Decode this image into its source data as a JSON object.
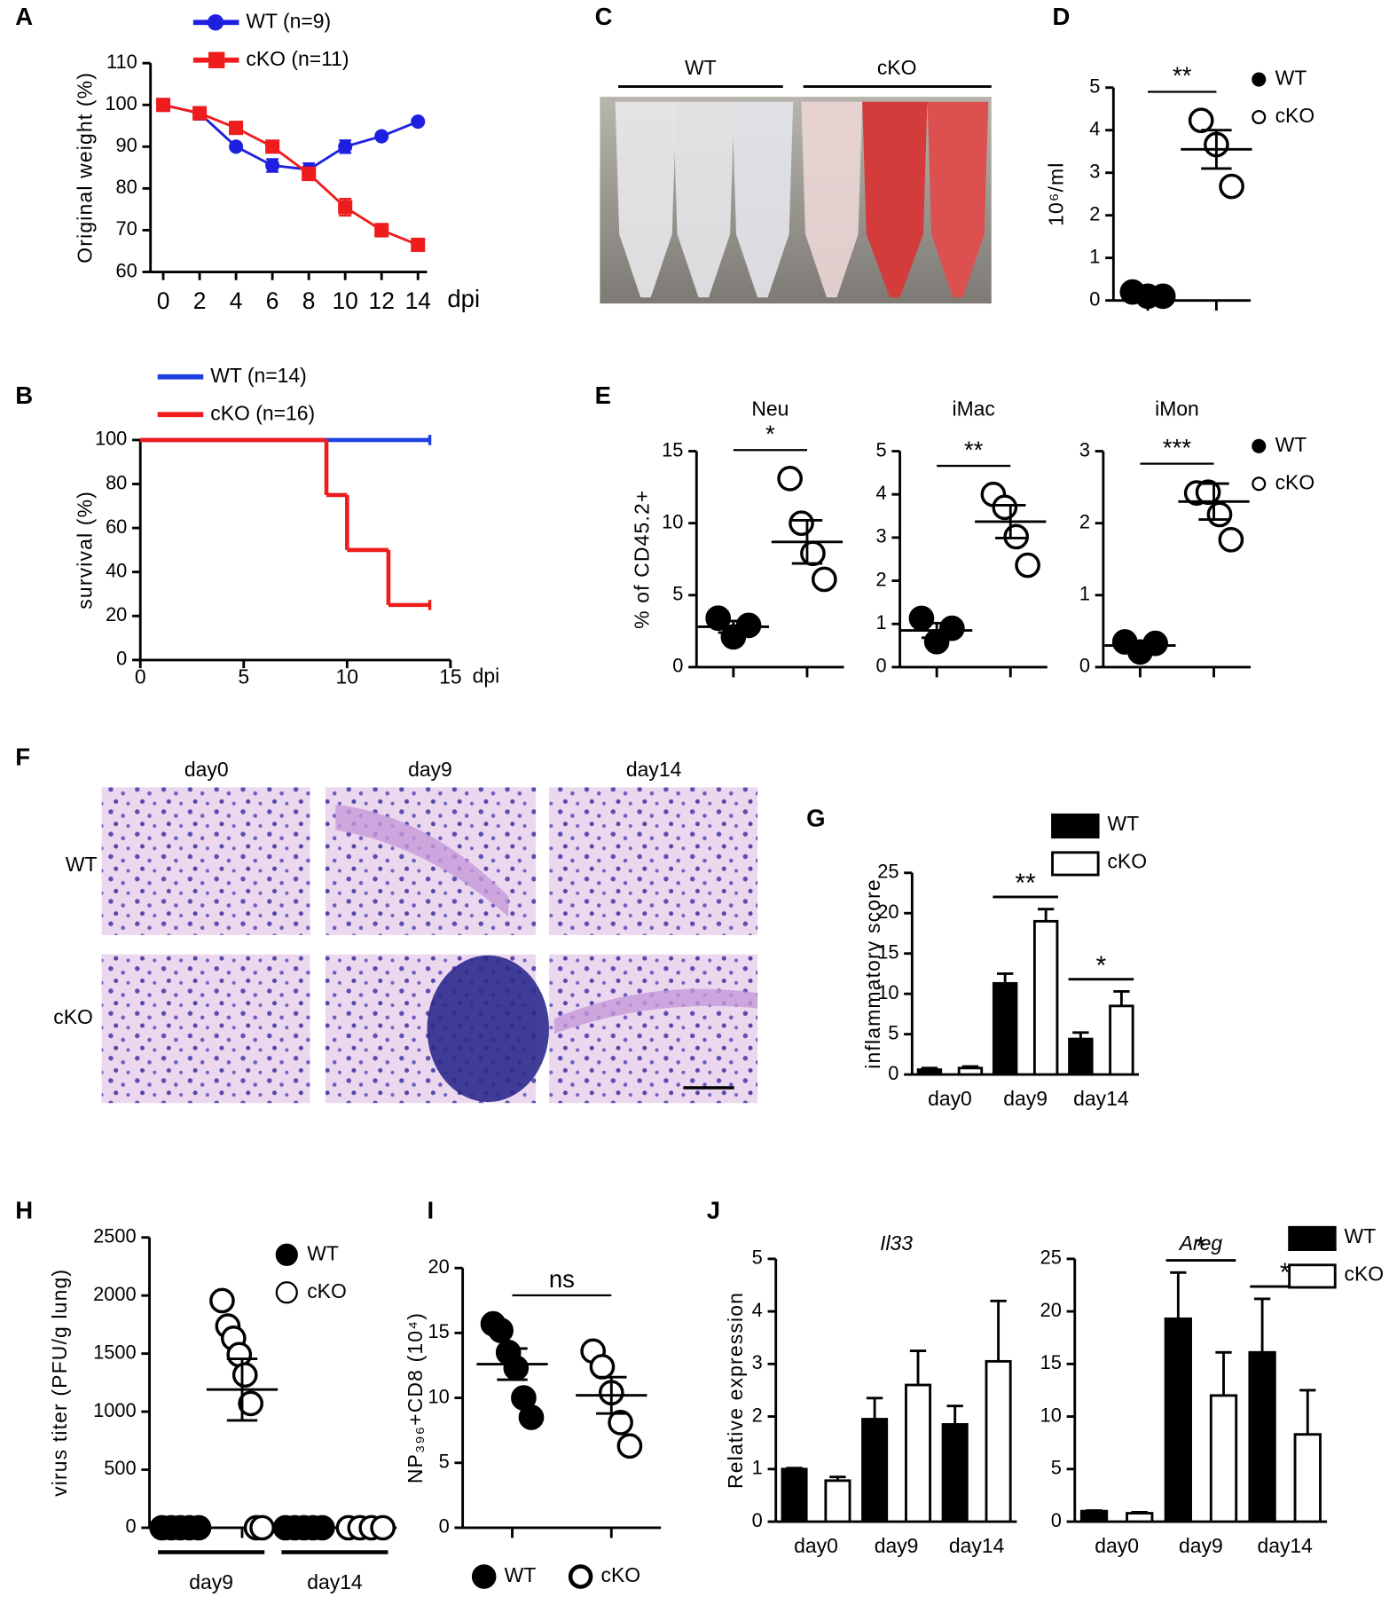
{
  "panel_labels": [
    "A",
    "B",
    "C",
    "D",
    "E",
    "F",
    "G",
    "H",
    "I",
    "J"
  ],
  "image_c": {
    "groups": [
      "WT",
      "cKO"
    ]
  },
  "image_f": {
    "columns": [
      "day0",
      "day9",
      "day14"
    ],
    "rows": [
      "WT",
      "cKO"
    ]
  },
  "chart_data": [
    {
      "type": "line",
      "x": [
        0,
        2,
        4,
        6,
        8,
        10,
        12,
        14
      ],
      "xlim": [
        -0.7,
        14.5
      ],
      "xticks": [
        0,
        2,
        4,
        6,
        8,
        10,
        12,
        14
      ],
      "xlabel": "dpi",
      "ylabel": "Original weight (%)",
      "ylim": [
        60,
        110
      ],
      "yticks": [
        60,
        70,
        80,
        90,
        100,
        110
      ],
      "legend": "top-left",
      "series": [
        {
          "name": "WT (n=9)",
          "color": "#1f1fe0",
          "marker": "circle",
          "values": [
            100,
            98,
            90,
            85.5,
            84.5,
            90,
            92.5,
            96
          ],
          "errors": [
            0,
            1.5,
            0,
            1.5,
            1.5,
            1.5,
            0,
            0
          ]
        },
        {
          "name": "cKO (n=11)",
          "color": "#ee1c1c",
          "marker": "square",
          "values": [
            100,
            98,
            94.5,
            90,
            83.5,
            75.5,
            70,
            66.5
          ],
          "errors": [
            0,
            0,
            1,
            1,
            1.5,
            2,
            1.5,
            1
          ]
        }
      ]
    },
    {
      "type": "line",
      "step": true,
      "xlim": [
        0,
        15
      ],
      "xticks": [
        0,
        5,
        10,
        15
      ],
      "xlabel": "dpi",
      "ylabel": "survival (%)",
      "ylim": [
        0,
        100
      ],
      "yticks": [
        0,
        20,
        40,
        60,
        80,
        100
      ],
      "legend": "top-left",
      "series": [
        {
          "name": "WT (n=14)",
          "color": "#1f3fe0",
          "x": [
            0,
            14
          ],
          "values": [
            100,
            100
          ]
        },
        {
          "name": "cKO (n=16)",
          "color": "#ee1c1c",
          "x": [
            0,
            9,
            10,
            12,
            14
          ],
          "values": [
            100,
            75,
            50,
            25,
            25
          ]
        }
      ]
    },
    {
      "type": "scatter",
      "ylabel": "10⁶/ml",
      "ylim": [
        0,
        5
      ],
      "yticks": [
        0,
        1,
        2,
        3,
        4,
        5
      ],
      "legend": "right",
      "significance": "**",
      "series": [
        {
          "name": "WT",
          "filled": true,
          "values": [
            0.2,
            0.1,
            0.1
          ]
        },
        {
          "name": "cKO",
          "filled": false,
          "values": [
            4.23,
            3.66,
            2.68
          ],
          "mean": 3.55,
          "sem": 0.45
        }
      ]
    },
    {
      "type": "scatter",
      "title": "Neu",
      "ylabel": "% of CD45.2+",
      "ylim": [
        0,
        15
      ],
      "yticks": [
        0,
        5,
        10,
        15
      ],
      "significance": "*",
      "series": [
        {
          "name": "WT",
          "filled": true,
          "values": [
            3.4,
            2.1,
            2.9
          ],
          "mean": 2.8,
          "sem": 0.4
        },
        {
          "name": "cKO",
          "filled": false,
          "values": [
            13.1,
            10.0,
            7.9,
            6.1
          ],
          "mean": 8.7,
          "sem": 1.5
        }
      ]
    },
    {
      "type": "scatter",
      "title": "iMac",
      "ylim": [
        0,
        5
      ],
      "yticks": [
        0,
        1,
        2,
        3,
        4,
        5
      ],
      "significance": "**",
      "series": [
        {
          "name": "WT",
          "filled": true,
          "values": [
            1.13,
            0.59,
            0.9
          ],
          "mean": 0.85,
          "sem": 0.17
        },
        {
          "name": "cKO",
          "filled": false,
          "values": [
            4.0,
            3.7,
            3.02,
            2.36
          ],
          "mean": 3.37,
          "sem": 0.38
        }
      ]
    },
    {
      "type": "scatter",
      "title": "iMon",
      "ylim": [
        0,
        3
      ],
      "yticks": [
        0,
        1,
        2,
        3
      ],
      "legend": "right",
      "significance": "***",
      "series": [
        {
          "name": "WT",
          "filled": true,
          "values": [
            0.35,
            0.21,
            0.33
          ],
          "mean": 0.3,
          "sem": 0.05
        },
        {
          "name": "cKO",
          "filled": false,
          "values": [
            2.42,
            2.43,
            2.12,
            1.77
          ],
          "mean": 2.3,
          "sem": 0.25
        }
      ]
    },
    {
      "type": "bar",
      "categories": [
        "day0",
        "day9",
        "day14"
      ],
      "ylabel": "inflammatory score",
      "ylim": [
        0,
        25
      ],
      "yticks": [
        0,
        5,
        10,
        15,
        20,
        25
      ],
      "legend": "top-right",
      "significance": [
        null,
        "**",
        "*"
      ],
      "series": [
        {
          "name": "WT",
          "filled": true,
          "values": [
            0.6,
            11.3,
            4.4
          ],
          "errors": [
            0.2,
            1.2,
            0.8
          ]
        },
        {
          "name": "cKO",
          "filled": false,
          "values": [
            0.8,
            19,
            8.5
          ],
          "errors": [
            0.2,
            1.5,
            1.8
          ]
        }
      ]
    },
    {
      "type": "scatter",
      "categories": [
        "day9",
        "day14"
      ],
      "ylabel": "virus titer (PFU/g lung)",
      "ylim": [
        0,
        2500
      ],
      "yticks": [
        0,
        500,
        1000,
        1500,
        2000,
        2500
      ],
      "legend": "upper-right",
      "series": [
        {
          "name": "WT",
          "filled": true,
          "values": [
            [
              0,
              0,
              0,
              0,
              0
            ],
            [
              0,
              0,
              0,
              0,
              0
            ]
          ]
        },
        {
          "name": "cKO",
          "filled": false,
          "values": [
            [
              1956,
              1737,
              1632,
              1491,
              1316,
              1070,
              0,
              0
            ],
            [
              0,
              0,
              0,
              0
            ]
          ],
          "mean": [
            1190,
            null
          ],
          "sem": [
            265,
            null
          ]
        }
      ]
    },
    {
      "type": "scatter",
      "ylabel": "NP₃₉₆+CD8 (10⁴)",
      "ylim": [
        0,
        20
      ],
      "yticks": [
        0,
        5,
        10,
        15,
        20
      ],
      "legend": "bottom",
      "significance": "ns",
      "series": [
        {
          "name": "WT",
          "filled": true,
          "values": [
            15.7,
            15.2,
            13.5,
            12.3,
            10.0,
            8.5
          ],
          "mean": 12.6,
          "sem": 1.2
        },
        {
          "name": "cKO",
          "filled": false,
          "values": [
            13.6,
            12.4,
            10.4,
            8.1,
            6.3
          ],
          "mean": 10.2,
          "sem": 1.4
        }
      ]
    },
    {
      "type": "bar",
      "title": "Il33",
      "categories": [
        "day0",
        "day9",
        "day14"
      ],
      "ylabel": "Relative expression",
      "ylim": [
        0,
        5
      ],
      "yticks": [
        0,
        1,
        2,
        3,
        4,
        5
      ],
      "series": [
        {
          "name": "WT",
          "filled": true,
          "values": [
            1,
            1.95,
            1.85
          ],
          "errors": [
            0.02,
            0.4,
            0.35
          ]
        },
        {
          "name": "cKO",
          "filled": false,
          "values": [
            0.78,
            2.6,
            3.05
          ],
          "errors": [
            0.07,
            0.65,
            1.15
          ]
        }
      ]
    },
    {
      "type": "bar",
      "title": "Areg",
      "categories": [
        "day0",
        "day9",
        "day14"
      ],
      "ylim": [
        0,
        25
      ],
      "yticks": [
        0,
        5,
        10,
        15,
        20,
        25
      ],
      "legend": "top-right",
      "significance": [
        null,
        "*",
        "*"
      ],
      "series": [
        {
          "name": "WT",
          "filled": true,
          "values": [
            1,
            19.3,
            16.1
          ],
          "errors": [
            0.05,
            4.4,
            5.1
          ]
        },
        {
          "name": "cKO",
          "filled": false,
          "values": [
            0.8,
            12,
            8.3
          ],
          "errors": [
            0.1,
            4.1,
            4.2
          ]
        }
      ]
    }
  ]
}
